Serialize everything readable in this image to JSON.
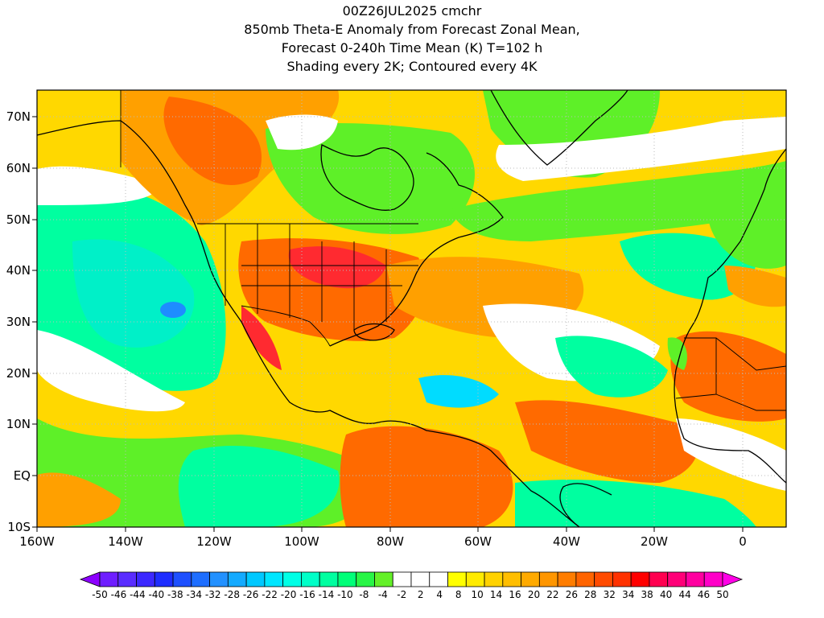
{
  "title_lines": [
    "00Z26JUL2025 cmchr",
    "850mb Theta-E Anomaly from Forecast Zonal Mean,",
    "Forecast 0-240h Time Mean (K) T=102 h",
    "Shading every 2K; Contoured every 4K"
  ],
  "y_ticks": [
    "70N",
    "60N",
    "50N",
    "40N",
    "30N",
    "20N",
    "10N",
    "EQ",
    "10S"
  ],
  "x_ticks": [
    "160W",
    "140W",
    "120W",
    "100W",
    "80W",
    "60W",
    "40W",
    "20W",
    "0"
  ],
  "colorbar": {
    "labels": [
      "-50",
      "-46",
      "-44",
      "-40",
      "-38",
      "-34",
      "-32",
      "-28",
      "-26",
      "-22",
      "-20",
      "-16",
      "-14",
      "-10",
      "-8",
      "-4",
      "-2",
      "2",
      "4",
      "8",
      "10",
      "14",
      "16",
      "20",
      "22",
      "26",
      "28",
      "32",
      "34",
      "38",
      "40",
      "44",
      "46",
      "50"
    ],
    "colors": [
      "#8c00ff",
      "#6e1eff",
      "#5a2dff",
      "#3c28ff",
      "#1e2dff",
      "#1e50ff",
      "#1e6eff",
      "#2391ff",
      "#14aaff",
      "#00c8ff",
      "#00e6ff",
      "#00ffe6",
      "#00ffc8",
      "#00ffa0",
      "#00ff78",
      "#28f546",
      "#64f028",
      "#ffffff",
      "#ffffff",
      "#ffffff",
      "#ffff00",
      "#ffeb00",
      "#ffd200",
      "#ffbe00",
      "#ffaa00",
      "#ff9600",
      "#ff7d00",
      "#ff6400",
      "#ff4b00",
      "#ff3200",
      "#ff0000",
      "#ff0050",
      "#ff0078",
      "#ff00a0",
      "#ff00c8",
      "#ff00e6"
    ]
  },
  "map": {
    "lon_range": [
      -160,
      10
    ],
    "lat_range": [
      -10,
      75
    ],
    "colors": {
      "yellow": "#ffd800",
      "light_yellow": "#ffff00",
      "orange": "#ffa000",
      "dark_orange": "#ff6a00",
      "red": "#ff2a30",
      "green": "#5ef028",
      "mint": "#00ffa0",
      "teal": "#00f0c8",
      "cyan": "#00dcff",
      "blue": "#1e8cff",
      "white": "#ffffff"
    }
  }
}
